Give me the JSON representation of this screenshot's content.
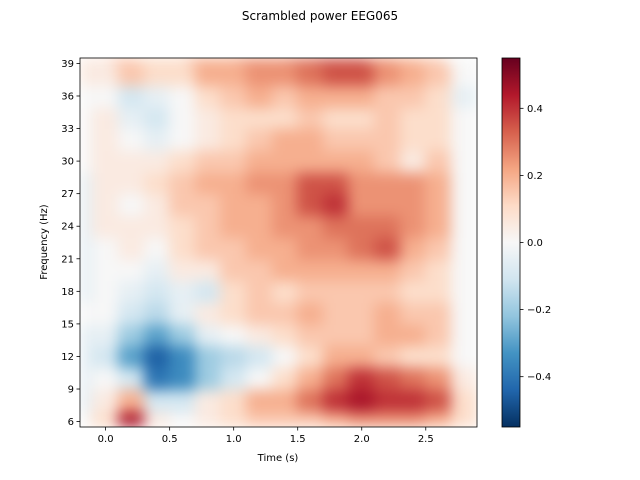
{
  "chart_data": {
    "type": "heatmap",
    "title": "Scrambled power EEG065",
    "xlabel": "Time (s)",
    "ylabel": "Frequency (Hz)",
    "xlim": [
      -0.2,
      2.9
    ],
    "ylim": [
      5.5,
      39.5
    ],
    "x_ticks": [
      0.0,
      0.5,
      1.0,
      1.5,
      2.0,
      2.5
    ],
    "x_tick_labels": [
      "0.0",
      "0.5",
      "1.0",
      "1.5",
      "2.0",
      "2.5"
    ],
    "y_ticks": [
      6,
      9,
      12,
      15,
      18,
      21,
      24,
      27,
      30,
      33,
      36,
      39
    ],
    "y_tick_labels": [
      "6",
      "9",
      "12",
      "15",
      "18",
      "21",
      "24",
      "27",
      "30",
      "33",
      "36",
      "39"
    ],
    "colormap": "RdBu_r",
    "vmin": -0.55,
    "vmax": 0.55,
    "colorbar_ticks": [
      -0.4,
      -0.2,
      0.0,
      0.2,
      0.4
    ],
    "colorbar_tick_labels": [
      "−0.4",
      "−0.2",
      "0.0",
      "0.2",
      "0.4"
    ],
    "time_grid_s": [
      -0.2,
      0.0,
      0.2,
      0.4,
      0.6,
      0.8,
      1.0,
      1.2,
      1.4,
      1.6,
      1.8,
      2.0,
      2.2,
      2.4,
      2.6,
      2.8
    ],
    "frequency_grid_hz": [
      6,
      8,
      10,
      12,
      14,
      16,
      18,
      20,
      22,
      24,
      26,
      28,
      30,
      32,
      34,
      36,
      38
    ],
    "values_power": [
      [
        0.0,
        0.1,
        0.45,
        0.05,
        0.0,
        0.05,
        0.1,
        0.15,
        0.15,
        0.15,
        0.2,
        0.25,
        0.25,
        0.25,
        0.2,
        0.1
      ],
      [
        -0.05,
        0.05,
        0.2,
        -0.1,
        -0.1,
        0.05,
        0.1,
        0.2,
        0.2,
        0.3,
        0.4,
        0.45,
        0.4,
        0.4,
        0.35,
        0.1
      ],
      [
        -0.05,
        0.0,
        -0.1,
        -0.4,
        -0.35,
        -0.2,
        -0.1,
        0.0,
        0.1,
        0.2,
        0.3,
        0.4,
        0.35,
        0.3,
        0.25,
        0.05
      ],
      [
        -0.05,
        -0.1,
        -0.3,
        -0.45,
        -0.35,
        -0.2,
        -0.15,
        -0.1,
        0.0,
        0.1,
        0.2,
        0.2,
        0.15,
        0.1,
        0.1,
        0.0
      ],
      [
        -0.05,
        -0.05,
        -0.2,
        -0.3,
        -0.2,
        -0.05,
        0.0,
        0.05,
        0.1,
        0.15,
        0.15,
        0.15,
        0.2,
        0.2,
        0.15,
        0.0
      ],
      [
        0.0,
        0.0,
        -0.1,
        -0.15,
        -0.05,
        0.05,
        0.1,
        0.15,
        0.15,
        0.2,
        0.15,
        0.15,
        0.2,
        0.15,
        0.15,
        0.0
      ],
      [
        -0.05,
        0.0,
        -0.05,
        -0.1,
        -0.05,
        -0.1,
        0.1,
        0.15,
        0.1,
        0.15,
        0.15,
        0.15,
        0.15,
        0.1,
        0.1,
        0.0
      ],
      [
        -0.05,
        0.0,
        0.0,
        -0.05,
        0.05,
        0.05,
        0.15,
        0.15,
        0.2,
        0.2,
        0.2,
        0.2,
        0.2,
        0.15,
        0.1,
        0.0
      ],
      [
        -0.05,
        0.0,
        0.05,
        0.0,
        0.1,
        0.15,
        0.15,
        0.2,
        0.2,
        0.25,
        0.25,
        0.3,
        0.35,
        0.2,
        0.15,
        0.0
      ],
      [
        -0.05,
        0.05,
        0.05,
        0.05,
        0.1,
        0.15,
        0.2,
        0.2,
        0.25,
        0.25,
        0.3,
        0.3,
        0.3,
        0.25,
        0.2,
        0.0
      ],
      [
        -0.05,
        0.05,
        0.0,
        0.05,
        0.15,
        0.15,
        0.2,
        0.2,
        0.25,
        0.35,
        0.4,
        0.25,
        0.25,
        0.25,
        0.2,
        0.0
      ],
      [
        -0.05,
        0.05,
        0.05,
        0.1,
        0.15,
        0.2,
        0.2,
        0.25,
        0.25,
        0.35,
        0.35,
        0.25,
        0.25,
        0.25,
        0.2,
        0.0
      ],
      [
        0.0,
        0.05,
        0.05,
        0.05,
        0.1,
        0.15,
        0.15,
        0.2,
        0.2,
        0.2,
        0.2,
        0.2,
        0.15,
        0.05,
        0.15,
        0.0
      ],
      [
        0.0,
        0.05,
        0.0,
        -0.05,
        0.0,
        0.05,
        0.1,
        0.15,
        0.2,
        0.2,
        0.15,
        0.15,
        0.15,
        0.1,
        0.1,
        0.0
      ],
      [
        0.0,
        0.05,
        -0.05,
        -0.1,
        0.0,
        0.05,
        0.1,
        0.1,
        0.1,
        0.15,
        0.1,
        0.1,
        0.15,
        0.1,
        0.1,
        0.0
      ],
      [
        0.0,
        0.0,
        -0.1,
        -0.05,
        0.0,
        0.1,
        0.15,
        0.2,
        0.15,
        0.2,
        0.2,
        0.2,
        0.15,
        0.15,
        0.1,
        -0.05
      ],
      [
        0.05,
        0.05,
        0.15,
        0.1,
        0.1,
        0.2,
        0.2,
        0.25,
        0.25,
        0.3,
        0.35,
        0.35,
        0.25,
        0.2,
        0.15,
        0.0
      ]
    ]
  }
}
